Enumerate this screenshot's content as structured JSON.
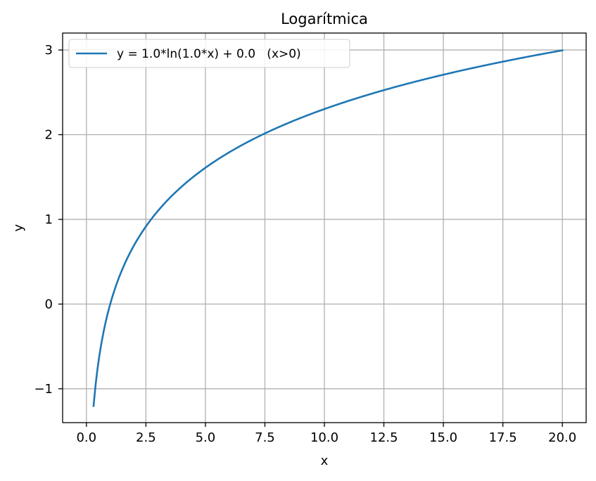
{
  "chart_data": {
    "type": "line",
    "title": "Logarítmica",
    "xlabel": "x",
    "ylabel": "y",
    "xlim": [
      -1.0,
      21.0
    ],
    "ylim": [
      -1.4,
      3.2
    ],
    "xticks": [
      0.0,
      2.5,
      5.0,
      7.5,
      10.0,
      12.5,
      15.0,
      17.5,
      20.0
    ],
    "xtick_labels": [
      "0.0",
      "2.5",
      "5.0",
      "7.5",
      "10.0",
      "12.5",
      "15.0",
      "17.5",
      "20.0"
    ],
    "yticks": [
      -1,
      0,
      1,
      2,
      3
    ],
    "ytick_labels": [
      "−1",
      "0",
      "1",
      "2",
      "3"
    ],
    "grid": true,
    "legend_position": "top-left",
    "series": [
      {
        "name": "y = 1.0*ln(1.0*x) + 0.0   (x>0)",
        "color": "#1f77b4",
        "function": "ln",
        "a": 1.0,
        "b": 1.0,
        "c": 0.0,
        "x_start": 0.3,
        "x_end": 20.0,
        "x": [
          0.3,
          0.6,
          0.9,
          1.2,
          1.5,
          2.0,
          2.5,
          3.0,
          4.0,
          5.0,
          7.5,
          10.0,
          12.5,
          15.0,
          17.5,
          20.0
        ],
        "y": [
          -1.2,
          -0.51,
          -0.11,
          0.18,
          0.41,
          0.69,
          0.92,
          1.1,
          1.39,
          1.61,
          2.01,
          2.3,
          2.53,
          2.71,
          2.86,
          3.0
        ]
      }
    ]
  }
}
